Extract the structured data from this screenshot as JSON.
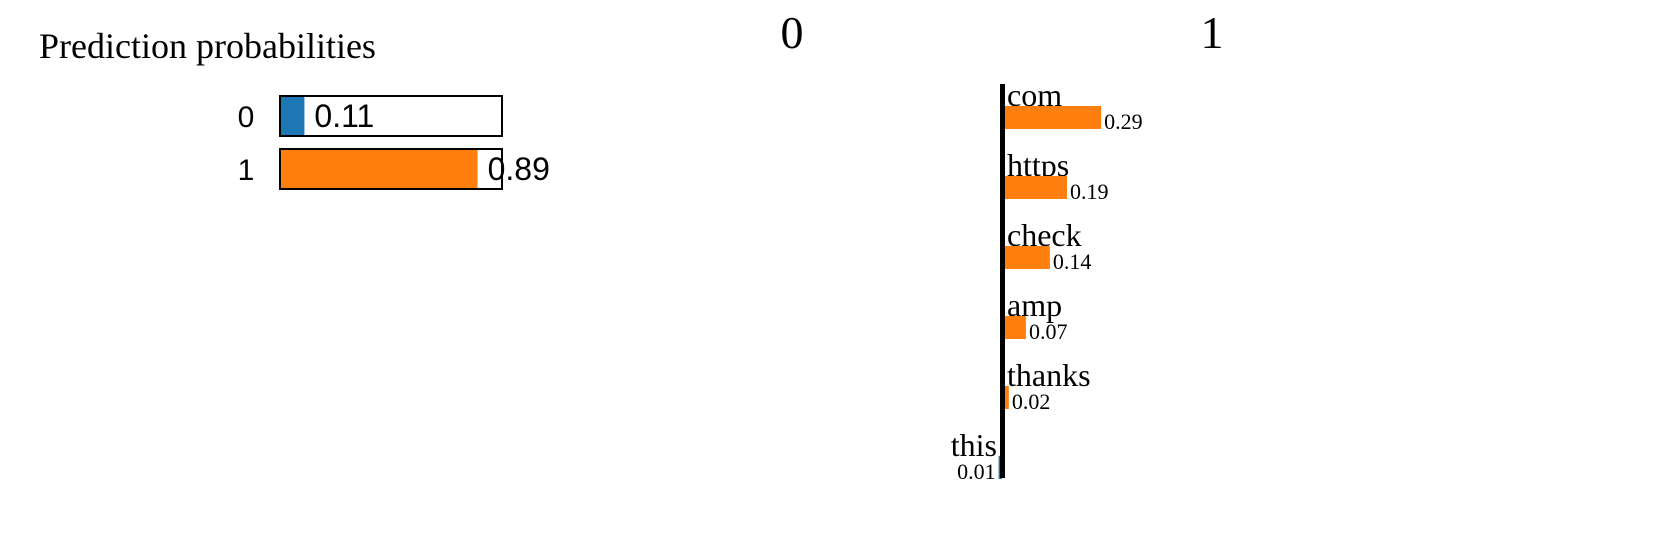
{
  "colors": {
    "class_0": "#1f77b4",
    "class_1": "#ff7f0e",
    "ink": "#000000"
  },
  "chart_data": [
    {
      "type": "bar",
      "orientation": "horizontal",
      "title": "Prediction probabilities",
      "categories": [
        "0",
        "1"
      ],
      "values": [
        0.11,
        0.89
      ],
      "value_labels": [
        "0.11",
        "0.89"
      ],
      "xlim": [
        0,
        1
      ]
    },
    {
      "type": "bar",
      "orientation": "horizontal",
      "title": "",
      "class_labels": [
        "0",
        "1"
      ],
      "categories": [
        "com",
        "https",
        "check",
        "amp",
        "thanks",
        "this"
      ],
      "values": [
        0.29,
        0.19,
        0.14,
        0.07,
        0.02,
        -0.01
      ],
      "value_labels": [
        "0.29",
        "0.19",
        "0.14",
        "0.07",
        "0.02",
        "0.01"
      ]
    }
  ]
}
